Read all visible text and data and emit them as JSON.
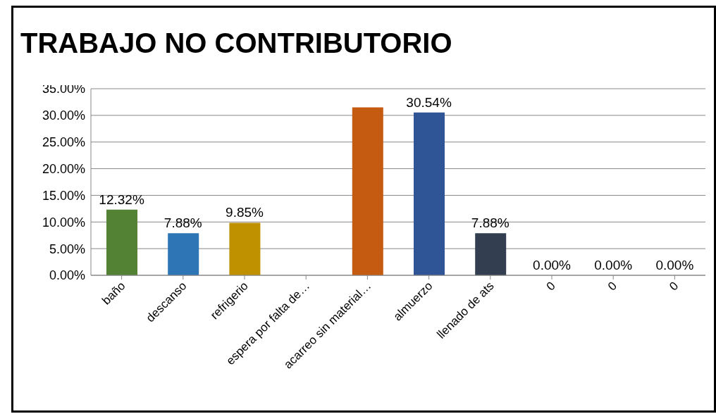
{
  "chart_data": {
    "type": "bar",
    "title": "TRABAJO NO CONTRIBUTORIO",
    "categories": [
      "baño",
      "descanso",
      "refrigerio",
      "espera por falta de…",
      "acarreo sin material…",
      "almuerzo",
      "llenado de ats",
      "0",
      "0",
      "0"
    ],
    "values": [
      12.32,
      7.88,
      9.85,
      0,
      31.5,
      30.54,
      7.88,
      0,
      0,
      0
    ],
    "colors": [
      "#548235",
      "#2e75b6",
      "#bf9000",
      "#7f7f7f",
      "#c55a11",
      "#2f5597",
      "#333f50",
      "#7f7f7f",
      "#7f7f7f",
      "#7f7f7f"
    ],
    "value_labels": [
      "12.32%",
      "7.88%",
      "9.85%",
      null,
      null,
      "30.54%",
      "7.88%",
      "0.00%",
      "0.00%",
      "0.00%"
    ],
    "ylim": [
      0,
      35
    ],
    "yticks": [
      {
        "value": 0,
        "label": "0.00%"
      },
      {
        "value": 5,
        "label": "5.00%"
      },
      {
        "value": 10,
        "label": "10.00%"
      },
      {
        "value": 15,
        "label": "15.00%"
      },
      {
        "value": 20,
        "label": "20.00%"
      },
      {
        "value": 25,
        "label": "25.00%"
      },
      {
        "value": 30,
        "label": "30.00%"
      },
      {
        "value": 35,
        "label": "35.00%"
      }
    ],
    "grid": "y"
  }
}
